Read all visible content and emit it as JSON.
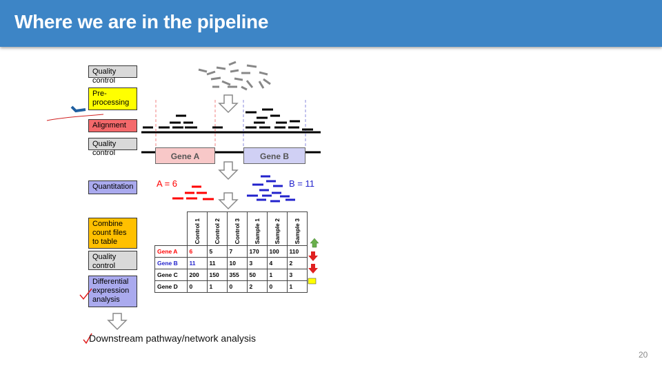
{
  "title": "Where we are in the pipeline",
  "steps": {
    "quality_control_1": "Quality control",
    "preprocessing": "Pre-\nprocessing",
    "alignment": "Alignment",
    "quality_control_2": "Quality control",
    "quantitation": "Quantitation",
    "combine": "Combine count files to table",
    "quality_control_3": "Quality control",
    "differential": "Differential expression analysis"
  },
  "genes": {
    "gene_a": "Gene A",
    "gene_b": "Gene B"
  },
  "counts": {
    "a": "A = 6",
    "b": "B = 11"
  },
  "table": {
    "columns": [
      "Control 1",
      "Control 2",
      "Control 3",
      "Sample 1",
      "Sample 2",
      "Sample 3"
    ],
    "rows": [
      {
        "gene": "Gene A",
        "values": [
          "6",
          "5",
          "7",
          "170",
          "100",
          "110"
        ]
      },
      {
        "gene": "Gene B",
        "values": [
          "11",
          "11",
          "10",
          "3",
          "4",
          "2"
        ]
      },
      {
        "gene": "Gene C",
        "values": [
          "200",
          "150",
          "355",
          "50",
          "1",
          "3"
        ]
      },
      {
        "gene": "Gene D",
        "values": [
          "0",
          "1",
          "0",
          "2",
          "0",
          "1"
        ]
      }
    ]
  },
  "colors": {
    "title_bar": "#3d85c6",
    "gene_a": "#ff0000",
    "gene_b": "#2222cc",
    "alignment": "#f4696b",
    "preprocessing": "#ffff00",
    "quantitation": "#aaaaee",
    "combine": "#ffc000"
  },
  "downstream": "Downstream pathway/network  analysis",
  "page_number": "20"
}
